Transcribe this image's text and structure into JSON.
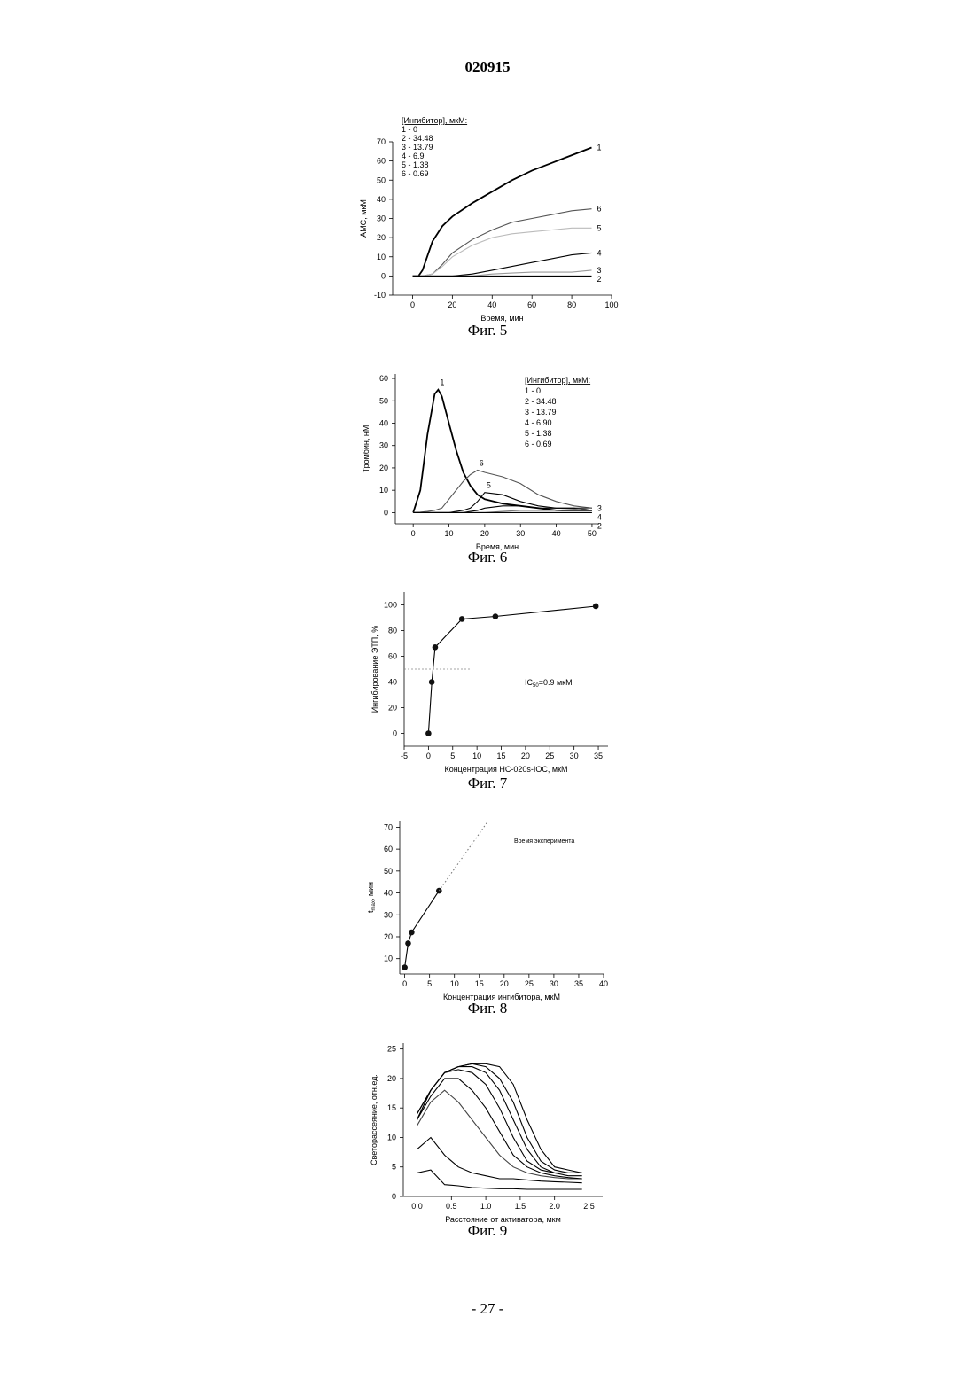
{
  "header": {
    "number": "020915"
  },
  "footer": {
    "page": "- 27 -"
  },
  "chart_data": [
    {
      "type": "line",
      "caption": "Фиг. 5",
      "xlabel": "Время, мин",
      "ylabel": "АМС, мкМ",
      "legend": {
        "title": "[Ингибитор], мкМ:",
        "entries": [
          "1 - 0",
          "2 - 34.48",
          "3 - 13.79",
          "4 - 6.9",
          "5 - 1.38",
          "6 - 0.69"
        ]
      },
      "xlim": [
        -10,
        100
      ],
      "xticks": [
        0,
        20,
        40,
        60,
        80,
        100
      ],
      "ylim": [
        -10,
        70
      ],
      "yticks": [
        -10,
        0,
        10,
        20,
        30,
        40,
        50,
        60,
        70
      ],
      "x": [
        0,
        3,
        5,
        10,
        15,
        20,
        30,
        40,
        50,
        60,
        70,
        80,
        90
      ],
      "series": [
        {
          "name": "1",
          "color": "#000000",
          "values": [
            0,
            0,
            3,
            18,
            26,
            31,
            38,
            44,
            50,
            55,
            59,
            63,
            67
          ]
        },
        {
          "name": "6",
          "color": "#555555",
          "values": [
            0,
            0,
            0,
            1,
            6,
            12,
            19,
            24,
            28,
            30,
            32,
            34,
            35
          ]
        },
        {
          "name": "5",
          "color": "#bbbbbb",
          "values": [
            0,
            0,
            0,
            1,
            5,
            10,
            16,
            20,
            22,
            23,
            24,
            25,
            25
          ]
        },
        {
          "name": "4",
          "color": "#000000",
          "values": [
            0,
            0,
            0,
            0,
            0,
            0,
            1,
            3,
            5,
            7,
            9,
            11,
            12
          ]
        },
        {
          "name": "3",
          "color": "#999999",
          "values": [
            0,
            0,
            0,
            0,
            0,
            0,
            0,
            1,
            1.5,
            2,
            2,
            2,
            3
          ]
        },
        {
          "name": "2",
          "color": "#000000",
          "values": [
            0,
            0,
            0,
            0,
            0,
            0,
            0,
            0,
            0,
            0,
            0,
            0,
            0
          ]
        }
      ]
    },
    {
      "type": "line",
      "caption": "Фиг. 6",
      "xlabel": "Время, мин",
      "ylabel": "Тромбин, нМ",
      "legend": {
        "title": "[Ингибитор], мкМ:",
        "entries": [
          "1 - 0",
          "2 - 34.48",
          "3 - 13.79",
          "4 - 6.90",
          "5 - 1.38",
          "6 - 0.69"
        ]
      },
      "xlim": [
        -5,
        52
      ],
      "xticks": [
        0,
        10,
        20,
        30,
        40,
        50
      ],
      "ylim": [
        -5,
        62
      ],
      "yticks": [
        0,
        10,
        20,
        30,
        40,
        50,
        60
      ],
      "x": [
        0,
        2,
        4,
        6,
        7,
        8,
        10,
        12,
        14,
        16,
        18,
        20,
        25,
        30,
        35,
        40,
        45,
        50
      ],
      "series": [
        {
          "name": "1",
          "color": "#000000",
          "values": [
            0,
            10,
            35,
            53,
            55,
            52,
            40,
            28,
            18,
            12,
            8,
            6,
            4,
            3,
            2,
            1,
            1,
            1
          ]
        },
        {
          "name": "6",
          "color": "#555555",
          "values": [
            0,
            0.2,
            0.5,
            1,
            1.5,
            2,
            6,
            10,
            14,
            17,
            19,
            18,
            16,
            13,
            8,
            5,
            3,
            2
          ]
        },
        {
          "name": "5",
          "color": "#000000",
          "values": [
            0,
            0,
            0,
            0,
            0,
            0,
            0,
            0.5,
            1,
            2,
            5,
            9,
            8,
            5,
            3,
            2,
            2,
            2
          ]
        },
        {
          "name": "4",
          "color": "#000000",
          "values": [
            0,
            0,
            0,
            0,
            0,
            0,
            0,
            0,
            0,
            0.5,
            1,
            2,
            3,
            3,
            2,
            2,
            2,
            1
          ]
        },
        {
          "name": "3",
          "color": "#777777",
          "values": [
            0,
            0,
            0,
            0,
            0,
            0,
            0,
            0,
            0,
            0,
            0,
            0,
            0.5,
            1,
            1,
            1,
            1.5,
            2
          ]
        },
        {
          "name": "2",
          "color": "#000000",
          "values": [
            0,
            0,
            0,
            0,
            0,
            0,
            0,
            0,
            0,
            0,
            0,
            0,
            0,
            0,
            0,
            0,
            0,
            0
          ]
        }
      ]
    },
    {
      "type": "scatter",
      "caption": "Фиг. 7",
      "xlabel": "Концентрация НС-020s-IOC, мкМ",
      "ylabel": "Ингибирование ЭТП, %",
      "annotation": [
        "IC",
        "50",
        "=0.9 мкМ"
      ],
      "reference_line": 50,
      "xlim": [
        -5,
        37
      ],
      "xticks": [
        -5,
        0,
        5,
        10,
        15,
        20,
        25,
        30,
        35
      ],
      "ylim": [
        -10,
        110
      ],
      "yticks": [
        0,
        20,
        40,
        60,
        80,
        100
      ],
      "series": [
        {
          "color": "#000000",
          "x": [
            0,
            0.69,
            1.38,
            6.9,
            13.79,
            34.48
          ],
          "values": [
            0,
            40,
            67,
            89,
            91,
            99
          ]
        }
      ]
    },
    {
      "type": "scatter",
      "caption": "Фиг. 8",
      "xlabel": "Концентрация ингибитора, мкМ",
      "ylabel": [
        "t",
        "max",
        ", мин"
      ],
      "annotation": [
        "Время эксперимента"
      ],
      "xlim": [
        -1,
        40
      ],
      "xticks": [
        0,
        5,
        10,
        15,
        20,
        25,
        30,
        35,
        40
      ],
      "ylim": [
        3,
        73
      ],
      "yticks": [
        10,
        20,
        30,
        40,
        50,
        60,
        70
      ],
      "series": [
        {
          "color": "#000000",
          "x": [
            0,
            0.69,
            1.38,
            6.9
          ],
          "values": [
            6,
            17,
            22,
            41
          ]
        },
        {
          "color": "#777777",
          "dashed": true,
          "x": [
            6.9,
            16.5
          ],
          "values": [
            41,
            72
          ]
        }
      ]
    },
    {
      "type": "line",
      "caption": "Фиг. 9",
      "xlabel": "Расстояние от активатора, мкм",
      "ylabel": "Светорассеяние, отн.ед.",
      "xlim": [
        -0.2,
        2.7
      ],
      "xticks": [
        {
          "value": 0,
          "label": "0.0"
        },
        0.5,
        {
          "value": 1,
          "label": "1.0"
        },
        1.5,
        {
          "value": 2,
          "label": "2.0"
        },
        2.5
      ],
      "ylim": [
        0,
        26
      ],
      "yticks": [
        0,
        5,
        10,
        15,
        20,
        25
      ],
      "x": [
        0,
        0.2,
        0.4,
        0.6,
        0.8,
        1,
        1.2,
        1.4,
        1.6,
        1.8,
        2,
        2.2,
        2.4
      ],
      "series": [
        {
          "color": "#000000",
          "values": [
            4,
            4.5,
            2,
            1.8,
            1.5,
            1.4,
            1.3,
            1.3,
            1.2,
            1.2,
            1.2,
            1.2,
            1.2
          ]
        },
        {
          "color": "#000000",
          "values": [
            8,
            10,
            7,
            5,
            4,
            3.5,
            3,
            3,
            2.8,
            2.6,
            2.5,
            2.4,
            2.3
          ]
        },
        {
          "color": "#444444",
          "values": [
            12,
            16,
            18,
            16,
            13,
            10,
            7,
            5,
            4,
            3.5,
            3.2,
            3,
            3
          ]
        },
        {
          "color": "#000000",
          "values": [
            13,
            17,
            20,
            20,
            18,
            15,
            11,
            7,
            5,
            4,
            3.5,
            3.2,
            3
          ]
        },
        {
          "color": "#000000",
          "values": [
            13,
            18,
            21,
            21.5,
            21,
            19,
            15,
            10,
            6,
            4.5,
            4,
            3.5,
            3.5
          ]
        },
        {
          "color": "#000000",
          "values": [
            13,
            18,
            21,
            22,
            22,
            21,
            18,
            13,
            8,
            5,
            4,
            4,
            4
          ]
        },
        {
          "color": "#000000",
          "values": [
            14,
            18,
            21,
            22,
            22.5,
            22,
            20,
            16,
            10,
            6,
            4.5,
            4,
            4
          ]
        },
        {
          "color": "#000000",
          "values": [
            14,
            18,
            21,
            22,
            22.5,
            22.5,
            22,
            19,
            13,
            8,
            5,
            4.5,
            4
          ]
        }
      ]
    }
  ]
}
